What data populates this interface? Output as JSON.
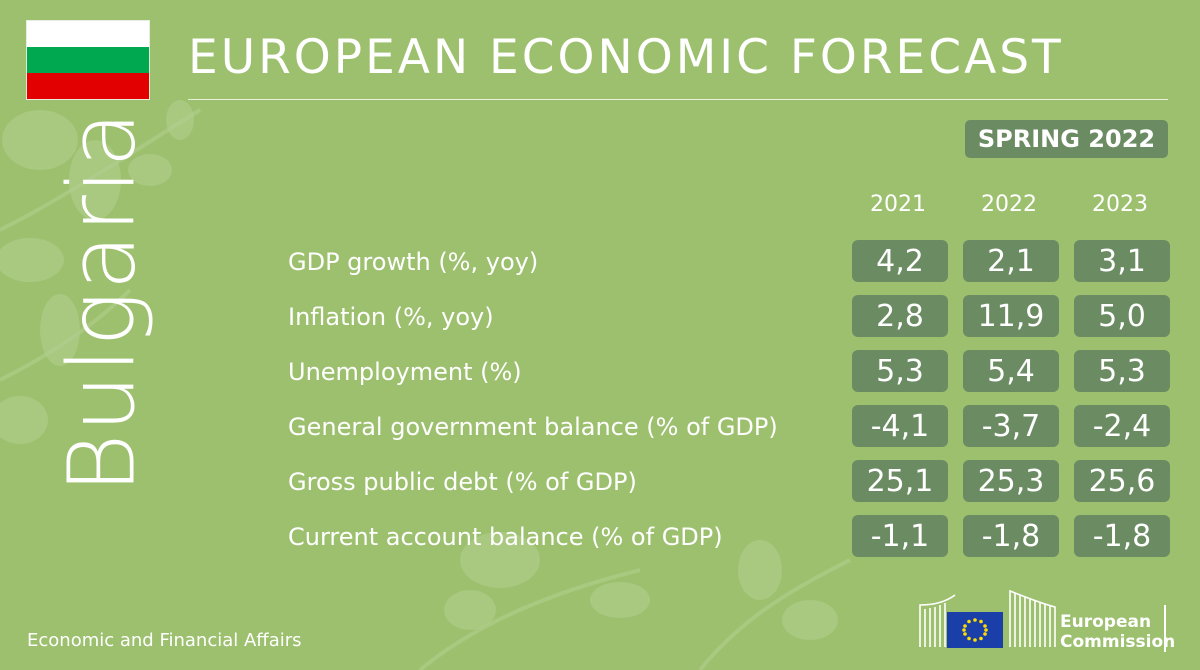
{
  "header": {
    "title": "EUROPEAN ECONOMIC FORECAST",
    "edition": "SPRING 2022",
    "country": "Bulgaria"
  },
  "flag": {
    "colors": [
      "#ffffff",
      "#00a850",
      "#e30000"
    ]
  },
  "years": [
    "2021",
    "2022",
    "2023"
  ],
  "rows": [
    {
      "label": "GDP growth (%, yoy)",
      "values": [
        "4,2",
        "2,1",
        "3,1"
      ]
    },
    {
      "label": "Inflation (%, yoy)",
      "values": [
        "2,8",
        "11,9",
        "5,0"
      ]
    },
    {
      "label": "Unemployment (%)",
      "values": [
        "5,3",
        "5,4",
        "5,3"
      ]
    },
    {
      "label": "General government balance (% of GDP)",
      "values": [
        "-4,1",
        "-3,7",
        "-2,4"
      ]
    },
    {
      "label": "Gross public debt (% of GDP)",
      "values": [
        "25,1",
        "25,3",
        "25,6"
      ]
    },
    {
      "label": "Current account balance (% of GDP)",
      "values": [
        "-1,1",
        "-1,8",
        "-1,8"
      ]
    }
  ],
  "footer": {
    "department": "Economic and Financial Affairs",
    "logo_line1": "European",
    "logo_line2": "Commission"
  },
  "colors": {
    "background": "#9dc06f",
    "box": "#6b8c63"
  }
}
